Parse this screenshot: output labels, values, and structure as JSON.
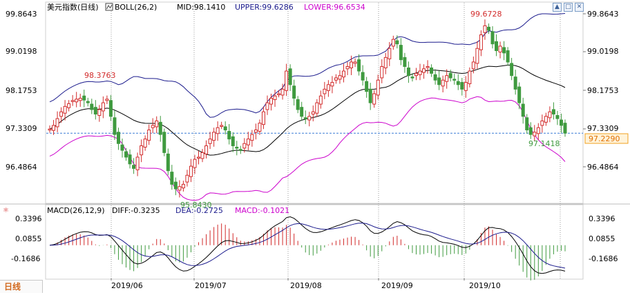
{
  "main_header": {
    "title": "美元指数(日线)",
    "bool_label": "BOLL(26,2)",
    "mid_label": "MID:98.1410",
    "upper_label": "UPPER:99.6286",
    "lower_label": "LOWER:96.6534"
  },
  "macd_header": {
    "macd_params": "MACD(26,12,9)",
    "diff_label": "DIFF:-0.3235",
    "dea_label": "DEA:-0.2725",
    "macd_label": "MACD:-0.1021"
  },
  "price_axis": {
    "ticks": [
      "99.8643",
      "99.0198",
      "98.1753",
      "97.3309",
      "96.4864"
    ],
    "current_price": "97.2290"
  },
  "macd_axis": {
    "ticks": [
      "0.3396",
      "0.0855",
      "-0.1686"
    ]
  },
  "date_axis": {
    "labels": [
      "2019/06",
      "2019/07",
      "2019/08",
      "2019/09",
      "2019/10"
    ]
  },
  "annotations": {
    "high_1": "98.3763",
    "low_1": "95.8430",
    "high_2": "99.6728",
    "low_2": "97.1418"
  },
  "bottom_tab": {
    "label": "日线"
  },
  "colors": {
    "up": "#d22b2b",
    "down": "#3f9a3f",
    "mid_line": "#000000",
    "upper_line": "#1a1a8c",
    "lower_line": "#cc00cc",
    "dea_line": "#1a1a8c"
  },
  "chart_data": [
    {
      "type": "candlestick",
      "series": [
        {
          "name": "MID",
          "value": 98.141
        },
        {
          "name": "UPPER",
          "value": 99.6286
        },
        {
          "name": "LOWER",
          "value": 96.6534
        }
      ],
      "ylim": [
        95.75,
        100.1
      ],
      "close_series": [
        97.32,
        97.4,
        97.55,
        97.7,
        97.82,
        97.88,
        97.95,
        97.98,
        98.0,
        97.96,
        97.9,
        97.75,
        97.65,
        97.75,
        97.9,
        97.98,
        97.6,
        97.2,
        97.0,
        96.85,
        96.7,
        96.55,
        96.45,
        96.7,
        96.95,
        97.1,
        97.3,
        97.4,
        97.5,
        97.2,
        96.8,
        96.4,
        96.1,
        96.0,
        96.05,
        96.1,
        96.3,
        96.5,
        96.65,
        96.7,
        96.8,
        96.95,
        97.1,
        97.25,
        97.35,
        97.4,
        97.3,
        97.1,
        96.95,
        96.9,
        96.85,
        97.0,
        97.1,
        97.2,
        97.3,
        97.45,
        97.7,
        97.9,
        98.0,
        98.05,
        98.1,
        98.2,
        98.6,
        98.3,
        98.0,
        97.75,
        97.6,
        97.55,
        97.6,
        97.7,
        97.9,
        98.05,
        98.2,
        98.3,
        98.35,
        98.45,
        98.5,
        98.6,
        98.7,
        98.8,
        98.8,
        98.6,
        98.4,
        98.15,
        97.9,
        98.1,
        98.4,
        98.7,
        98.9,
        99.1,
        99.3,
        99.2,
        98.85,
        98.7,
        98.5,
        98.45,
        98.55,
        98.6,
        98.65,
        98.7,
        98.55,
        98.4,
        98.3,
        98.4,
        98.5,
        98.45,
        98.4,
        98.3,
        98.2,
        98.35,
        98.6,
        98.8,
        99.1,
        99.4,
        99.6,
        99.5,
        99.2,
        99.05,
        99.15,
        99.0,
        98.8,
        98.5,
        98.2,
        97.9,
        97.6,
        97.3,
        97.2,
        97.25,
        97.35,
        97.5,
        97.6,
        97.7,
        97.65,
        97.55,
        97.4,
        97.23
      ]
    },
    {
      "type": "bar",
      "series": [
        {
          "name": "DIFF",
          "value": -0.3235
        },
        {
          "name": "DEA",
          "value": -0.2725
        },
        {
          "name": "MACD",
          "value": -0.1021
        }
      ],
      "ylim": [
        -0.3,
        0.42
      ]
    }
  ]
}
